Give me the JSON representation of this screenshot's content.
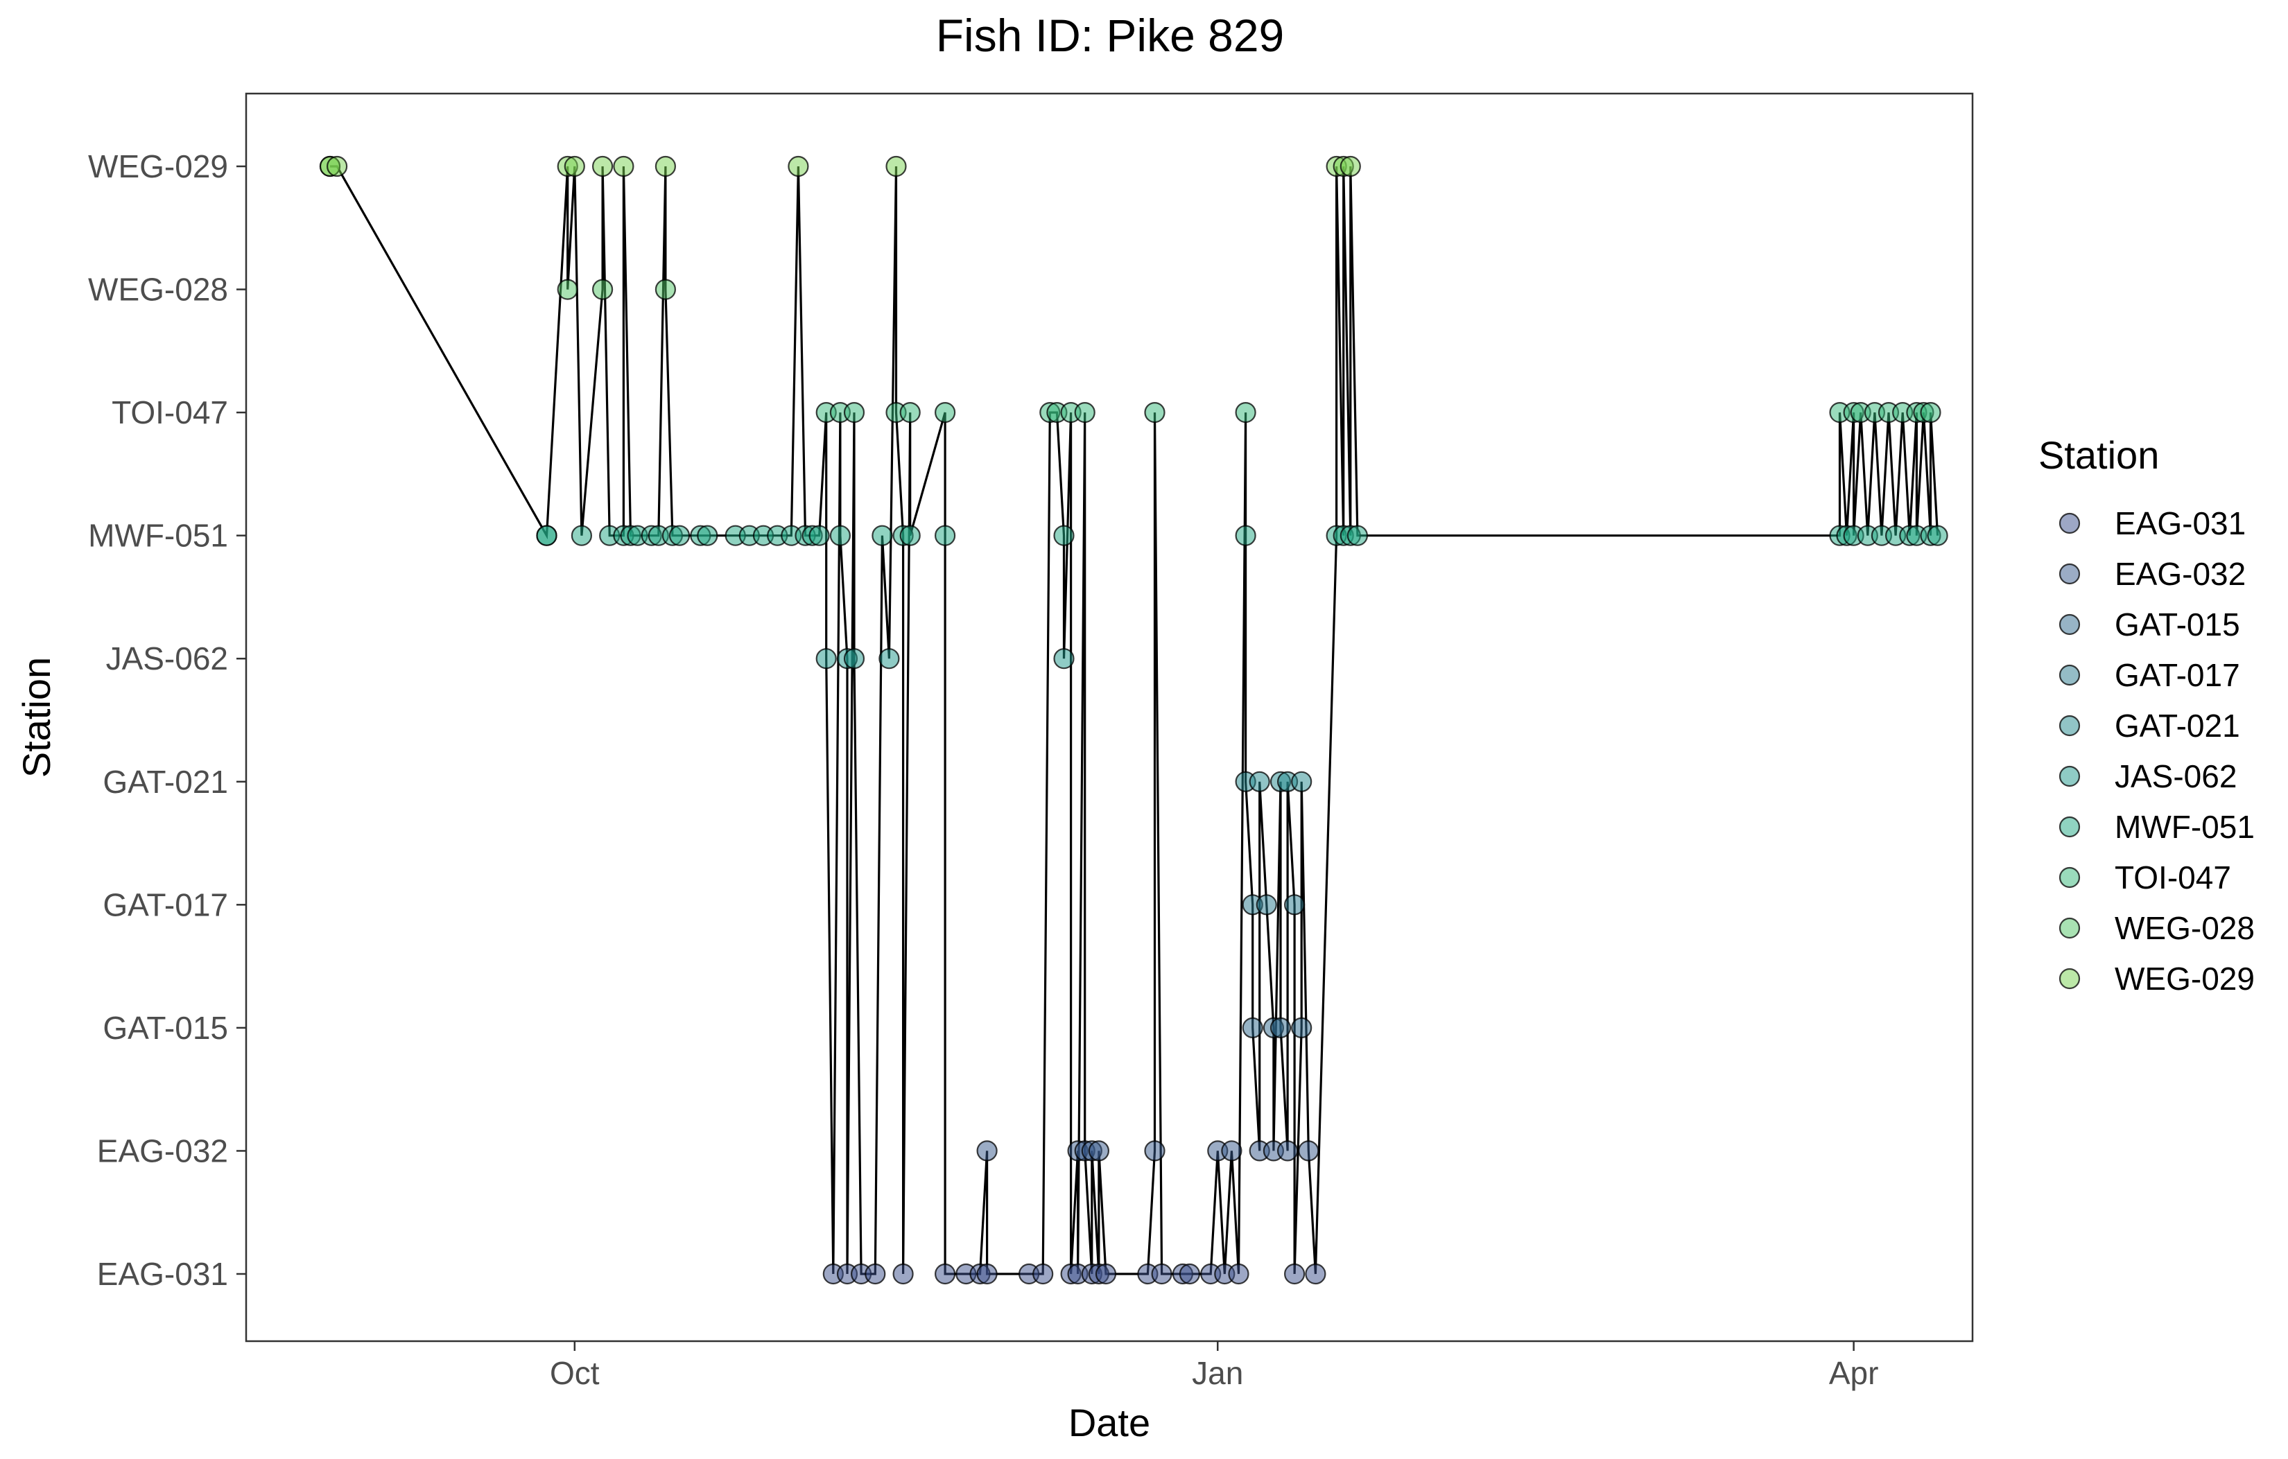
{
  "chart_data": {
    "type": "scatter",
    "title": "Fish ID: Pike 829",
    "xlabel": "Date",
    "ylabel": "Station",
    "x_tick_labels": [
      {
        "label": "Oct",
        "date": "2023-10-01"
      },
      {
        "label": "Jan",
        "date": "2024-01-01"
      },
      {
        "label": "Apr",
        "date": "2024-04-01"
      }
    ],
    "xlim": [
      "2023-08-15",
      "2024-04-18"
    ],
    "categories": [
      "EAG-031",
      "EAG-032",
      "GAT-015",
      "GAT-017",
      "GAT-021",
      "JAS-062",
      "MWF-051",
      "TOI-047",
      "WEG-028",
      "WEG-029"
    ],
    "grid": false,
    "legend": {
      "title": "Station",
      "position": "right",
      "entries": [
        "EAG-031",
        "EAG-032",
        "GAT-015",
        "GAT-017",
        "GAT-021",
        "JAS-062",
        "MWF-051",
        "TOI-047",
        "WEG-028",
        "WEG-029"
      ]
    },
    "colors": {
      "EAG-031": "#3b4f8c",
      "EAG-032": "#38598c",
      "GAT-015": "#30698e",
      "GAT-017": "#29798e",
      "GAT-021": "#23898e",
      "JAS-062": "#1f988b",
      "MWF-051": "#22a884",
      "TOI-047": "#35b779",
      "WEG-028": "#54c568",
      "WEG-029": "#7ad151"
    },
    "marker_alpha": 0.5,
    "line_color": "#000000",
    "detections": [
      {
        "date": "2023-08-27",
        "station": "WEG-029"
      },
      {
        "date": "2023-08-27",
        "station": "WEG-029"
      },
      {
        "date": "2023-08-28",
        "station": "WEG-029"
      },
      {
        "date": "2023-09-27",
        "station": "MWF-051"
      },
      {
        "date": "2023-09-27",
        "station": "MWF-051"
      },
      {
        "date": "2023-09-30",
        "station": "WEG-029"
      },
      {
        "date": "2023-09-30",
        "station": "WEG-028"
      },
      {
        "date": "2023-10-01",
        "station": "WEG-029"
      },
      {
        "date": "2023-10-02",
        "station": "MWF-051"
      },
      {
        "date": "2023-10-05",
        "station": "WEG-028"
      },
      {
        "date": "2023-10-05",
        "station": "WEG-029"
      },
      {
        "date": "2023-10-06",
        "station": "MWF-051"
      },
      {
        "date": "2023-10-08",
        "station": "MWF-051"
      },
      {
        "date": "2023-10-08",
        "station": "WEG-029"
      },
      {
        "date": "2023-10-09",
        "station": "MWF-051"
      },
      {
        "date": "2023-10-10",
        "station": "MWF-051"
      },
      {
        "date": "2023-10-12",
        "station": "MWF-051"
      },
      {
        "date": "2023-10-13",
        "station": "MWF-051"
      },
      {
        "date": "2023-10-14",
        "station": "WEG-029"
      },
      {
        "date": "2023-10-14",
        "station": "WEG-028"
      },
      {
        "date": "2023-10-15",
        "station": "MWF-051"
      },
      {
        "date": "2023-10-16",
        "station": "MWF-051"
      },
      {
        "date": "2023-10-19",
        "station": "MWF-051"
      },
      {
        "date": "2023-10-20",
        "station": "MWF-051"
      },
      {
        "date": "2023-10-24",
        "station": "MWF-051"
      },
      {
        "date": "2023-10-26",
        "station": "MWF-051"
      },
      {
        "date": "2023-10-28",
        "station": "MWF-051"
      },
      {
        "date": "2023-10-30",
        "station": "MWF-051"
      },
      {
        "date": "2023-11-01",
        "station": "MWF-051"
      },
      {
        "date": "2023-11-02",
        "station": "WEG-029"
      },
      {
        "date": "2023-11-03",
        "station": "MWF-051"
      },
      {
        "date": "2023-11-04",
        "station": "MWF-051"
      },
      {
        "date": "2023-11-05",
        "station": "MWF-051"
      },
      {
        "date": "2023-11-06",
        "station": "TOI-047"
      },
      {
        "date": "2023-11-06",
        "station": "JAS-062"
      },
      {
        "date": "2023-11-07",
        "station": "EAG-031"
      },
      {
        "date": "2023-11-08",
        "station": "TOI-047"
      },
      {
        "date": "2023-11-08",
        "station": "MWF-051"
      },
      {
        "date": "2023-11-09",
        "station": "JAS-062"
      },
      {
        "date": "2023-11-09",
        "station": "EAG-031"
      },
      {
        "date": "2023-11-10",
        "station": "TOI-047"
      },
      {
        "date": "2023-11-10",
        "station": "JAS-062"
      },
      {
        "date": "2023-11-11",
        "station": "EAG-031"
      },
      {
        "date": "2023-11-13",
        "station": "EAG-031"
      },
      {
        "date": "2023-11-14",
        "station": "MWF-051"
      },
      {
        "date": "2023-11-15",
        "station": "JAS-062"
      },
      {
        "date": "2023-11-16",
        "station": "WEG-029"
      },
      {
        "date": "2023-11-16",
        "station": "TOI-047"
      },
      {
        "date": "2023-11-17",
        "station": "MWF-051"
      },
      {
        "date": "2023-11-17",
        "station": "EAG-031"
      },
      {
        "date": "2023-11-18",
        "station": "TOI-047"
      },
      {
        "date": "2023-11-18",
        "station": "MWF-051"
      },
      {
        "date": "2023-11-23",
        "station": "TOI-047"
      },
      {
        "date": "2023-11-23",
        "station": "MWF-051"
      },
      {
        "date": "2023-11-23",
        "station": "EAG-031"
      },
      {
        "date": "2023-11-26",
        "station": "EAG-031"
      },
      {
        "date": "2023-11-28",
        "station": "EAG-031"
      },
      {
        "date": "2023-11-29",
        "station": "EAG-032"
      },
      {
        "date": "2023-11-29",
        "station": "EAG-031"
      },
      {
        "date": "2023-12-05",
        "station": "EAG-031"
      },
      {
        "date": "2023-12-07",
        "station": "EAG-031"
      },
      {
        "date": "2023-12-08",
        "station": "TOI-047"
      },
      {
        "date": "2023-12-09",
        "station": "TOI-047"
      },
      {
        "date": "2023-12-10",
        "station": "MWF-051"
      },
      {
        "date": "2023-12-10",
        "station": "JAS-062"
      },
      {
        "date": "2023-12-11",
        "station": "TOI-047"
      },
      {
        "date": "2023-12-11",
        "station": "EAG-031"
      },
      {
        "date": "2023-12-12",
        "station": "EAG-032"
      },
      {
        "date": "2023-12-12",
        "station": "EAG-031"
      },
      {
        "date": "2023-12-13",
        "station": "TOI-047"
      },
      {
        "date": "2023-12-13",
        "station": "EAG-032"
      },
      {
        "date": "2023-12-14",
        "station": "EAG-031"
      },
      {
        "date": "2023-12-14",
        "station": "EAG-032"
      },
      {
        "date": "2023-12-15",
        "station": "EAG-031"
      },
      {
        "date": "2023-12-15",
        "station": "EAG-032"
      },
      {
        "date": "2023-12-16",
        "station": "EAG-031"
      },
      {
        "date": "2023-12-22",
        "station": "EAG-031"
      },
      {
        "date": "2023-12-23",
        "station": "EAG-032"
      },
      {
        "date": "2023-12-23",
        "station": "TOI-047"
      },
      {
        "date": "2023-12-24",
        "station": "EAG-031"
      },
      {
        "date": "2023-12-27",
        "station": "EAG-031"
      },
      {
        "date": "2023-12-28",
        "station": "EAG-031"
      },
      {
        "date": "2023-12-31",
        "station": "EAG-031"
      },
      {
        "date": "2024-01-01",
        "station": "EAG-032"
      },
      {
        "date": "2024-01-02",
        "station": "EAG-031"
      },
      {
        "date": "2024-01-03",
        "station": "EAG-032"
      },
      {
        "date": "2024-01-04",
        "station": "EAG-031"
      },
      {
        "date": "2024-01-05",
        "station": "TOI-047"
      },
      {
        "date": "2024-01-05",
        "station": "MWF-051"
      },
      {
        "date": "2024-01-05",
        "station": "GAT-021"
      },
      {
        "date": "2024-01-06",
        "station": "GAT-017"
      },
      {
        "date": "2024-01-06",
        "station": "GAT-015"
      },
      {
        "date": "2024-01-07",
        "station": "EAG-032"
      },
      {
        "date": "2024-01-07",
        "station": "GAT-021"
      },
      {
        "date": "2024-01-08",
        "station": "GAT-017"
      },
      {
        "date": "2024-01-09",
        "station": "GAT-015"
      },
      {
        "date": "2024-01-09",
        "station": "EAG-032"
      },
      {
        "date": "2024-01-10",
        "station": "GAT-021"
      },
      {
        "date": "2024-01-10",
        "station": "GAT-015"
      },
      {
        "date": "2024-01-11",
        "station": "EAG-032"
      },
      {
        "date": "2024-01-11",
        "station": "GAT-021"
      },
      {
        "date": "2024-01-12",
        "station": "GAT-017"
      },
      {
        "date": "2024-01-12",
        "station": "EAG-031"
      },
      {
        "date": "2024-01-13",
        "station": "GAT-015"
      },
      {
        "date": "2024-01-13",
        "station": "GAT-021"
      },
      {
        "date": "2024-01-14",
        "station": "EAG-032"
      },
      {
        "date": "2024-01-15",
        "station": "EAG-031"
      },
      {
        "date": "2024-01-18",
        "station": "MWF-051"
      },
      {
        "date": "2024-01-18",
        "station": "WEG-029"
      },
      {
        "date": "2024-01-19",
        "station": "MWF-051"
      },
      {
        "date": "2024-01-19",
        "station": "WEG-029"
      },
      {
        "date": "2024-01-20",
        "station": "MWF-051"
      },
      {
        "date": "2024-01-20",
        "station": "WEG-029"
      },
      {
        "date": "2024-01-21",
        "station": "MWF-051"
      },
      {
        "date": "2024-03-30",
        "station": "MWF-051"
      },
      {
        "date": "2024-03-30",
        "station": "TOI-047"
      },
      {
        "date": "2024-03-31",
        "station": "MWF-051"
      },
      {
        "date": "2024-04-01",
        "station": "TOI-047"
      },
      {
        "date": "2024-04-01",
        "station": "MWF-051"
      },
      {
        "date": "2024-04-02",
        "station": "TOI-047"
      },
      {
        "date": "2024-04-03",
        "station": "MWF-051"
      },
      {
        "date": "2024-04-04",
        "station": "TOI-047"
      },
      {
        "date": "2024-04-05",
        "station": "MWF-051"
      },
      {
        "date": "2024-04-06",
        "station": "TOI-047"
      },
      {
        "date": "2024-04-07",
        "station": "MWF-051"
      },
      {
        "date": "2024-04-08",
        "station": "TOI-047"
      },
      {
        "date": "2024-04-09",
        "station": "MWF-051"
      },
      {
        "date": "2024-04-10",
        "station": "TOI-047"
      },
      {
        "date": "2024-04-10",
        "station": "MWF-051"
      },
      {
        "date": "2024-04-11",
        "station": "TOI-047"
      },
      {
        "date": "2024-04-12",
        "station": "MWF-051"
      },
      {
        "date": "2024-04-12",
        "station": "TOI-047"
      },
      {
        "date": "2024-04-13",
        "station": "MWF-051"
      }
    ]
  }
}
